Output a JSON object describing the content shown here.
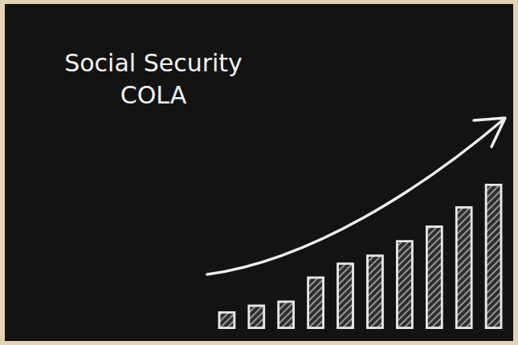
{
  "chart_data": {
    "type": "bar",
    "title": "Social Security COLA",
    "categories": [
      null,
      null,
      null,
      null,
      null,
      null,
      null,
      null,
      null,
      null
    ],
    "values": [
      22,
      30,
      35,
      65,
      82,
      92,
      110,
      128,
      152,
      180
    ],
    "color": "#e8e8e8",
    "ylim": [
      0,
      180
    ],
    "grid": false,
    "tick_labels": false
  }
}
